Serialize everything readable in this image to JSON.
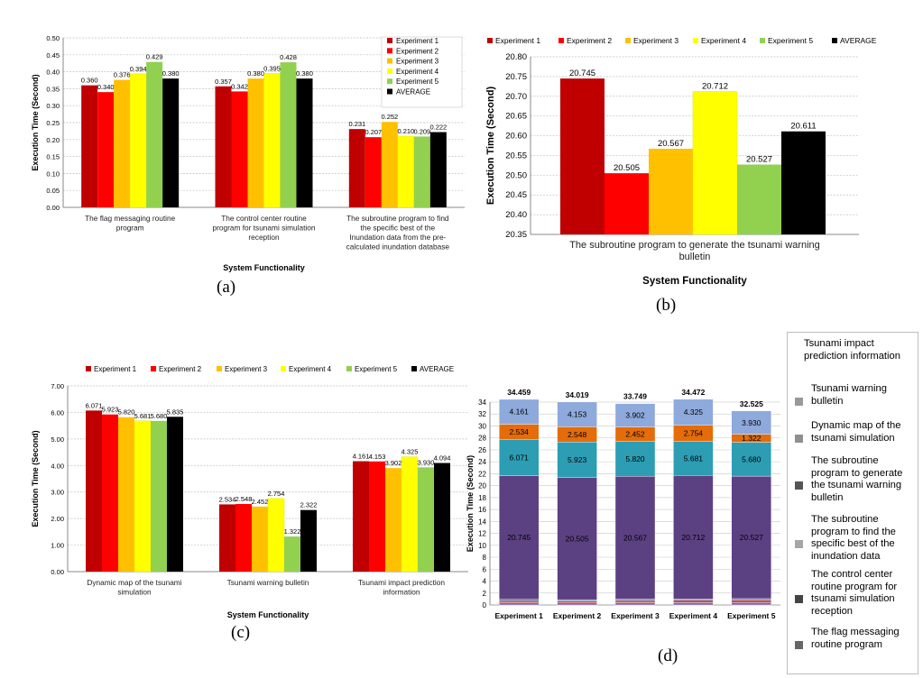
{
  "captions": [
    "(a)",
    "(b)",
    "(c)",
    "(d)"
  ],
  "chart_data": [
    {
      "id": "a",
      "type": "bar",
      "categories": [
        [
          "The flag messaging routine",
          "program"
        ],
        [
          "The control center routine",
          "program for tsunami simulation",
          "reception"
        ],
        [
          "The subroutine program to find",
          "the specific best of the",
          "Inundation data from the pre-",
          "calculated inundation database"
        ]
      ],
      "series": [
        {
          "name": "Experiment 1",
          "color": "#C00000",
          "values": [
            0.36,
            0.357,
            0.231
          ],
          "labels": [
            "0.360",
            "0.357",
            "0.231"
          ]
        },
        {
          "name": "Experiment 2",
          "color": "#FF0000",
          "values": [
            0.34,
            0.342,
            0.207
          ],
          "labels": [
            "0.340",
            "0.342",
            "0.207"
          ]
        },
        {
          "name": "Experiment 3",
          "color": "#FFC000",
          "values": [
            0.376,
            0.38,
            0.252
          ],
          "labels": [
            "0.376",
            "0.380",
            "0.252"
          ]
        },
        {
          "name": "Experiment 4",
          "color": "#FFFF00",
          "values": [
            0.394,
            0.395,
            0.21
          ],
          "labels": [
            "0.394",
            "0.395",
            "0.210"
          ]
        },
        {
          "name": "Experiment 5",
          "color": "#92D050",
          "values": [
            0.429,
            0.428,
            0.209
          ],
          "labels": [
            "0.429",
            "0.428",
            "0.209"
          ]
        },
        {
          "name": "AVERAGE",
          "color": "#000000",
          "values": [
            0.38,
            0.38,
            0.222
          ],
          "labels": [
            "0.380",
            "0.380",
            "0.222"
          ]
        }
      ],
      "ylim": [
        0,
        0.5
      ],
      "yticks": [
        "0.00",
        "0.05",
        "0.10",
        "0.15",
        "0.20",
        "0.25",
        "0.30",
        "0.35",
        "0.40",
        "0.45",
        "0.50"
      ],
      "xlabel": "System Functionality",
      "ylabel": "Execution Time (Second)",
      "legend": "right-inside",
      "grid": true
    },
    {
      "id": "b",
      "type": "bar",
      "categories": [
        [
          "The subroutine program to generate the tsunami warning",
          "bulletin"
        ]
      ],
      "series": [
        {
          "name": "Experiment 1",
          "color": "#C00000",
          "values": [
            20.745
          ],
          "labels": [
            "20.745"
          ]
        },
        {
          "name": "Experiment 2",
          "color": "#FF0000",
          "values": [
            20.505
          ],
          "labels": [
            "20.505"
          ]
        },
        {
          "name": "Experiment 3",
          "color": "#FFC000",
          "values": [
            20.567
          ],
          "labels": [
            "20.567"
          ]
        },
        {
          "name": "Experiment 4",
          "color": "#FFFF00",
          "values": [
            20.712
          ],
          "labels": [
            "20.712"
          ]
        },
        {
          "name": "Experiment 5",
          "color": "#92D050",
          "values": [
            20.527
          ],
          "labels": [
            "20.527"
          ]
        },
        {
          "name": "AVERAGE",
          "color": "#000000",
          "values": [
            20.611
          ],
          "labels": [
            "20.611"
          ]
        }
      ],
      "ylim": [
        20.35,
        20.8
      ],
      "yticks": [
        "20.35",
        "20.40",
        "20.45",
        "20.50",
        "20.55",
        "20.60",
        "20.65",
        "20.70",
        "20.75",
        "20.80"
      ],
      "xlabel": "System Functionality",
      "ylabel": "Execution Time (Second)",
      "legend": "top",
      "grid": true
    },
    {
      "id": "c",
      "type": "bar",
      "categories": [
        [
          "Dynamic map of the tsunami",
          "simulation"
        ],
        [
          "Tsunami warning bulletin"
        ],
        [
          "Tsunami impact prediction",
          "information"
        ]
      ],
      "series": [
        {
          "name": "Experiment 1",
          "color": "#C00000",
          "values": [
            6.071,
            2.534,
            4.161
          ],
          "labels": [
            "6.071",
            "2.534",
            "4.161"
          ]
        },
        {
          "name": "Experiment 2",
          "color": "#FF0000",
          "values": [
            5.923,
            2.548,
            4.153
          ],
          "labels": [
            "5.923",
            "2.548",
            "4.153"
          ]
        },
        {
          "name": "Experiment 3",
          "color": "#FFC000",
          "values": [
            5.82,
            2.452,
            3.902
          ],
          "labels": [
            "5.820",
            "2.452",
            "3.902"
          ]
        },
        {
          "name": "Experiment 4",
          "color": "#FFFF00",
          "values": [
            5.681,
            2.754,
            4.325
          ],
          "labels": [
            "5.681",
            "2.754",
            "4.325"
          ]
        },
        {
          "name": "Experiment 5",
          "color": "#92D050",
          "values": [
            5.68,
            1.322,
            3.93
          ],
          "labels": [
            "5.680",
            "1.322",
            "3.930"
          ]
        },
        {
          "name": "AVERAGE",
          "color": "#000000",
          "values": [
            5.835,
            2.322,
            4.094
          ],
          "labels": [
            "5.835",
            "2.322",
            "4.094"
          ]
        }
      ],
      "ylim": [
        0,
        7
      ],
      "yticks": [
        "0.00",
        "1.00",
        "2.00",
        "3.00",
        "4.00",
        "5.00",
        "6.00",
        "7.00"
      ],
      "xlabel": "System Functionality",
      "ylabel": "Execution Time (Second)",
      "legend": "top",
      "grid": true
    },
    {
      "id": "d",
      "type": "bar",
      "stacked": true,
      "categories": [
        "Experiment 1",
        "Experiment 2",
        "Experiment 3",
        "Experiment 4",
        "Experiment 5"
      ],
      "totals": [
        "34.459",
        "34.019",
        "33.749",
        "34.472",
        "32.525"
      ],
      "series": [
        {
          "name": "The flag messaging routine program",
          "color": "#8064A2",
          "values": [
            0.36,
            0.34,
            0.376,
            0.394,
            0.429
          ],
          "labels": [
            "",
            "",
            "",
            "",
            ""
          ]
        },
        {
          "name": "The control center routine program for tsunami simulation reception",
          "color": "#C0504D",
          "values": [
            0.357,
            0.342,
            0.38,
            0.395,
            0.428
          ],
          "labels": [
            "",
            "",
            "",
            "",
            ""
          ]
        },
        {
          "name": "The subroutine program to find the specific best of the inundation data",
          "color": "#4F81BD",
          "values": [
            0.231,
            0.207,
            0.252,
            0.21,
            0.209
          ],
          "labels": [
            "",
            "",
            "",
            "",
            ""
          ]
        },
        {
          "name": "The subroutine program to generate the tsunami warning bulletin",
          "color": "#5B4182",
          "values": [
            20.745,
            20.505,
            20.567,
            20.712,
            20.527
          ],
          "labels": [
            "20.745",
            "20.505",
            "20.567",
            "20.712",
            "20.527"
          ]
        },
        {
          "name": "Dynamic map of the tsunami simulation",
          "color": "#2C9DB3",
          "values": [
            6.071,
            5.923,
            5.82,
            5.681,
            5.68
          ],
          "labels": [
            "6.071",
            "5.923",
            "5.820",
            "5.681",
            "5.680"
          ]
        },
        {
          "name": "Tsunami warning bulletin",
          "color": "#E46C0A",
          "values": [
            2.534,
            2.548,
            2.452,
            2.754,
            1.322
          ],
          "labels": [
            "2.534",
            "2.548",
            "2.452",
            "2.754",
            "1.322"
          ]
        },
        {
          "name": "Tsunami impact prediction information",
          "color": "#8EA9DB",
          "values": [
            4.161,
            4.153,
            3.902,
            4.325,
            3.93
          ],
          "labels": [
            "4.161",
            "4.153",
            "3.902",
            "4.325",
            "3.930"
          ]
        }
      ],
      "ylim": [
        0,
        34
      ],
      "yticks": [
        "0",
        "2",
        "4",
        "6",
        "8",
        "10",
        "12",
        "14",
        "16",
        "18",
        "20",
        "22",
        "24",
        "26",
        "28",
        "30",
        "32",
        "34"
      ],
      "xlabel": "",
      "ylabel": "Execution Time (Second)",
      "legend": "right-outside",
      "legend_items": [
        {
          "label": "Tsunami impact prediction information",
          "color": "#FFFFFF"
        },
        {
          "label": "Tsunami warning bulletin",
          "color": "#999999"
        },
        {
          "label": "Dynamic map of the tsunami simulation",
          "color": "#8F8F8F"
        },
        {
          "label": "The subroutine program to generate the tsunami warning bulletin",
          "color": "#555555"
        },
        {
          "label": "The subroutine program to find the specific best of the inundation data",
          "color": "#A6A6A6"
        },
        {
          "label": "The control center routine program for tsunami simulation reception",
          "color": "#444444"
        },
        {
          "label": "The flag messaging routine program",
          "color": "#666666"
        }
      ],
      "grid": true
    }
  ]
}
